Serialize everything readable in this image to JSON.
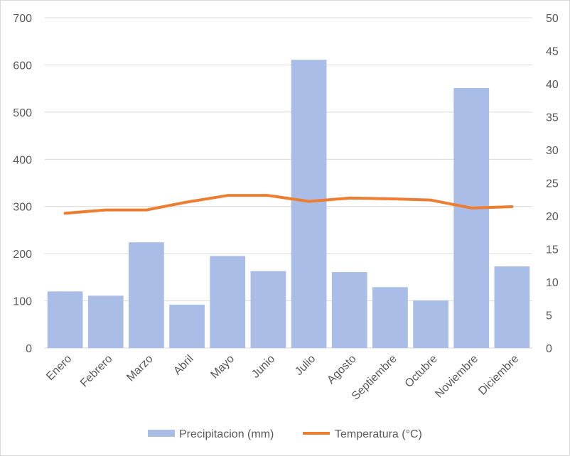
{
  "chart_data": {
    "type": "bar+line",
    "categories": [
      "Enero",
      "Febrero",
      "Marzo",
      "Abril",
      "Mayo",
      "Junio",
      "Julio",
      "Agosto",
      "Septiembre",
      "Octubre",
      "Noviembre",
      "Diciembre"
    ],
    "series": [
      {
        "name": "Precipitacion (mm)",
        "type": "bar",
        "axis": "left",
        "color": "#a9bde6",
        "values": [
          120,
          111,
          224,
          92,
          195,
          163,
          611,
          161,
          129,
          101,
          551,
          173
        ]
      },
      {
        "name": "Temperatura (°C)",
        "type": "line",
        "axis": "right",
        "color": "#ed7d31",
        "values": [
          20.4,
          20.9,
          20.9,
          22.1,
          23.1,
          23.1,
          22.2,
          22.7,
          22.6,
          22.4,
          21.2,
          21.4
        ]
      }
    ],
    "y_left": {
      "min": 0,
      "max": 700,
      "ticks": [
        "0",
        "100",
        "200",
        "300",
        "400",
        "500",
        "600",
        "700"
      ]
    },
    "y_right": {
      "min": 0,
      "max": 50,
      "ticks": [
        "0",
        "5",
        "10",
        "15",
        "20",
        "25",
        "30",
        "35",
        "40",
        "45",
        "50"
      ]
    },
    "grid": true,
    "legend_position": "bottom",
    "gridline_color": "#d9d9d9",
    "text_color": "#595959"
  }
}
